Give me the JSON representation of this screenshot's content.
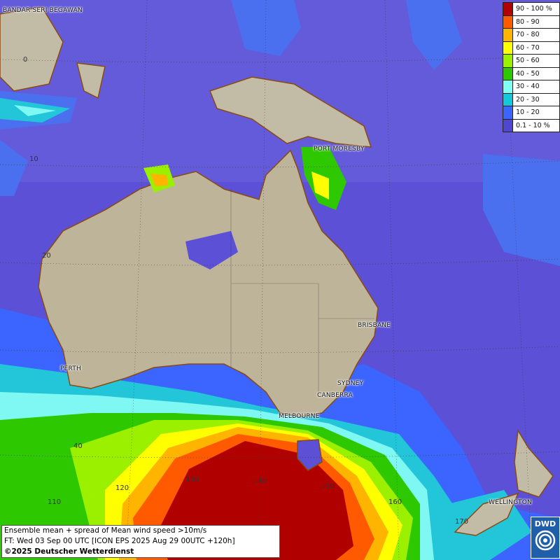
{
  "legend": {
    "items": [
      {
        "label": "90 - 100 %",
        "color": "#b00000"
      },
      {
        "label": "80 - 90",
        "color": "#ff5a00"
      },
      {
        "label": "70 - 80",
        "color": "#ffb400"
      },
      {
        "label": "60 - 70",
        "color": "#ffff00"
      },
      {
        "label": "50 - 60",
        "color": "#9bf000"
      },
      {
        "label": "40 - 50",
        "color": "#2ec800"
      },
      {
        "label": "30 - 40",
        "color": "#7ffff4"
      },
      {
        "label": "20 - 30",
        "color": "#14c8dc"
      },
      {
        "label": "10 - 20",
        "color": "#3c64ff"
      },
      {
        "label": "0.1 - 10 %",
        "color": "#5046d2"
      }
    ]
  },
  "cities": {
    "bandar": "BANDAR SERI BEGAWAN",
    "port_moresby": "PORT MORESBY",
    "brisbane": "BRISBANE",
    "perth": "PERTH",
    "sydney": "SYDNEY",
    "canberra": "CANBERRA",
    "melbourne": "MELBOURNE",
    "wellington": "WELLINGTON"
  },
  "coords": {
    "lat0": "0",
    "lat10": "10",
    "lat20": "20",
    "lat40": "40",
    "lon110": "110",
    "lon120": "120",
    "lon130": "130",
    "lon140": "140",
    "lon150": "150",
    "lon160": "160",
    "lon170": "170"
  },
  "info": {
    "line1": "Ensemble mean + spread of Mean wind speed >10m/s",
    "line2": "FT: Wed 03 Sep 00 UTC [ICON EPS 2025 Aug 29 00UTC +120h]",
    "copyright": "©2025 Deutscher Wetterdienst"
  },
  "logo": {
    "text": "DWD"
  }
}
